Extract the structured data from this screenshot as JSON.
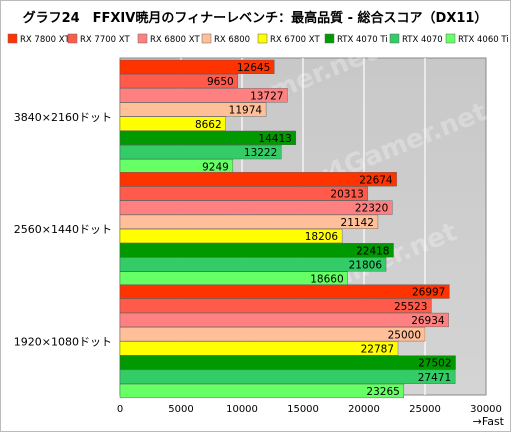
{
  "chart_data": {
    "type": "bar",
    "orientation": "horizontal",
    "title": "グラフ24　FFXIV暁月のフィナーレベンチ：最高品質 - 総合スコア（DX11）",
    "categories": [
      "3840×2160ドット",
      "2560×1440ドット",
      "1920×1080ドット"
    ],
    "series": [
      {
        "name": "RX 7800 XT",
        "color": "#ff3300",
        "values": [
          12645,
          22674,
          26997
        ]
      },
      {
        "name": "RX 7700 XT",
        "color": "#ff5a4a",
        "values": [
          9650,
          20313,
          25523
        ]
      },
      {
        "name": "RX 6800 XT",
        "color": "#ff8080",
        "values": [
          13727,
          22320,
          26934
        ]
      },
      {
        "name": "RX 6800",
        "color": "#ffbf99",
        "values": [
          11974,
          21142,
          25000
        ]
      },
      {
        "name": "RX 6700 XT",
        "color": "#ffff00",
        "values": [
          8662,
          18206,
          22787
        ]
      },
      {
        "name": "RTX 4070 Ti",
        "color": "#009900",
        "values": [
          14413,
          22418,
          27502
        ]
      },
      {
        "name": "RTX 4070",
        "color": "#33cc66",
        "values": [
          13222,
          21806,
          27471
        ]
      },
      {
        "name": "RTX 4060 Ti",
        "color": "#66ff66",
        "values": [
          9249,
          18660,
          23265
        ]
      }
    ],
    "xlim": [
      0,
      30000
    ],
    "xticks": [
      "0",
      "5000",
      "10000",
      "15000",
      "20000",
      "25000",
      "30000"
    ],
    "xlabel": "→Fast",
    "legend_position": "top",
    "grid": true,
    "watermark": "4Gamer.net"
  }
}
